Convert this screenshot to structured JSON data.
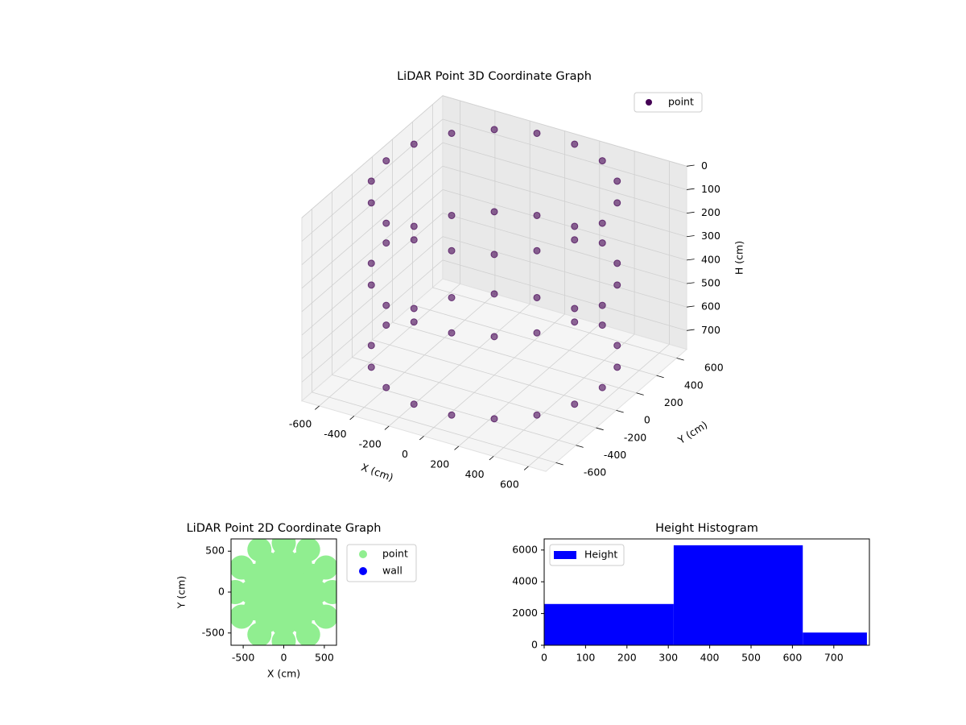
{
  "chart_data": [
    {
      "type": "scatter3d",
      "title": "LiDAR Point 3D Coordinate Graph",
      "xlabel": "X (cm)",
      "ylabel": "Y (cm)",
      "zlabel": "H (cm)",
      "xlim": [
        -700,
        700
      ],
      "ylim": [
        -700,
        700
      ],
      "zlim": [
        0,
        780
      ],
      "z_inverted": true,
      "xticks": [
        -600,
        -400,
        -200,
        0,
        200,
        400,
        600
      ],
      "yticks": [
        -600,
        -400,
        -200,
        0,
        200,
        400,
        600
      ],
      "zticks": [
        0,
        100,
        200,
        300,
        400,
        500,
        600,
        700
      ],
      "grid": true,
      "legend": "upper right",
      "series": [
        {
          "name": "point",
          "color": "#440154",
          "x": [
            620,
            583,
            475,
            310,
            108,
            -108,
            -310,
            -475,
            -583,
            -620,
            -583,
            -475,
            -310,
            -108,
            108,
            310,
            475,
            583,
            620,
            583,
            475,
            310,
            108,
            -108,
            -310,
            -475,
            -583,
            -620,
            -583,
            -475,
            -310,
            -108,
            108,
            310,
            475,
            583,
            620,
            583,
            475,
            310,
            108,
            -108,
            -310,
            -475,
            -583,
            -620,
            -583,
            -475,
            -310,
            -108,
            108,
            310,
            475,
            583
          ],
          "y": [
            0,
            212,
            399,
            537,
            611,
            611,
            537,
            399,
            212,
            0,
            -212,
            -399,
            -537,
            -611,
            -611,
            -537,
            -399,
            -212,
            0,
            212,
            399,
            537,
            611,
            611,
            537,
            399,
            212,
            0,
            -212,
            -399,
            -537,
            -611,
            -611,
            -537,
            -399,
            -212,
            0,
            212,
            399,
            537,
            611,
            611,
            537,
            399,
            212,
            0,
            -212,
            -399,
            -537,
            -611,
            -611,
            -537,
            -399,
            -212
          ],
          "z": [
            0,
            0,
            0,
            0,
            0,
            0,
            0,
            0,
            0,
            0,
            0,
            0,
            0,
            0,
            0,
            0,
            0,
            0,
            350,
            350,
            350,
            350,
            350,
            350,
            350,
            350,
            350,
            350,
            350,
            350,
            350,
            350,
            350,
            350,
            350,
            350,
            700,
            700,
            700,
            700,
            700,
            700,
            700,
            700,
            700,
            700,
            700,
            700,
            700,
            700,
            700,
            700,
            700,
            700
          ]
        }
      ]
    },
    {
      "type": "scatter",
      "title": "LiDAR Point 2D Coordinate Graph",
      "xlabel": "X (cm)",
      "ylabel": "Y (cm)",
      "xlim": [
        -650,
        650
      ],
      "ylim": [
        -650,
        650
      ],
      "xticks": [
        -500,
        0,
        500
      ],
      "yticks": [
        -500,
        0,
        500
      ],
      "legend": "outside right",
      "series": [
        {
          "name": "point",
          "color": "#90ee90",
          "x": [
            600,
            520,
            300,
            0,
            -300,
            -520,
            -600,
            -520,
            -300,
            0,
            300,
            520,
            400,
            346,
            200,
            0,
            -200,
            -346,
            -400,
            -346,
            -200,
            0,
            200,
            346,
            200,
            173,
            100,
            0,
            -100,
            -173,
            -200,
            -173,
            -100,
            0,
            100,
            173,
            0
          ],
          "y": [
            0,
            300,
            520,
            600,
            520,
            300,
            0,
            -300,
            -520,
            -600,
            -520,
            -300,
            0,
            200,
            346,
            400,
            346,
            200,
            0,
            -200,
            -346,
            -400,
            -346,
            -200,
            0,
            100,
            173,
            200,
            173,
            100,
            0,
            -100,
            -173,
            -200,
            -173,
            -100,
            0
          ]
        },
        {
          "name": "wall",
          "color": "#0000ff",
          "x": [],
          "y": []
        }
      ]
    },
    {
      "type": "histogram",
      "title": "Height Histogram",
      "bins": [
        0,
        313,
        625,
        780
      ],
      "xlim": [
        0,
        786
      ],
      "ylim": [
        0,
        6700
      ],
      "xticks": [
        0,
        100,
        200,
        300,
        400,
        500,
        600,
        700
      ],
      "yticks": [
        0,
        2000,
        4000,
        6000
      ],
      "legend": "upper left",
      "series": [
        {
          "name": "Height",
          "color": "#0000ff",
          "values": [
            2600,
            6300,
            800
          ]
        }
      ]
    }
  ]
}
